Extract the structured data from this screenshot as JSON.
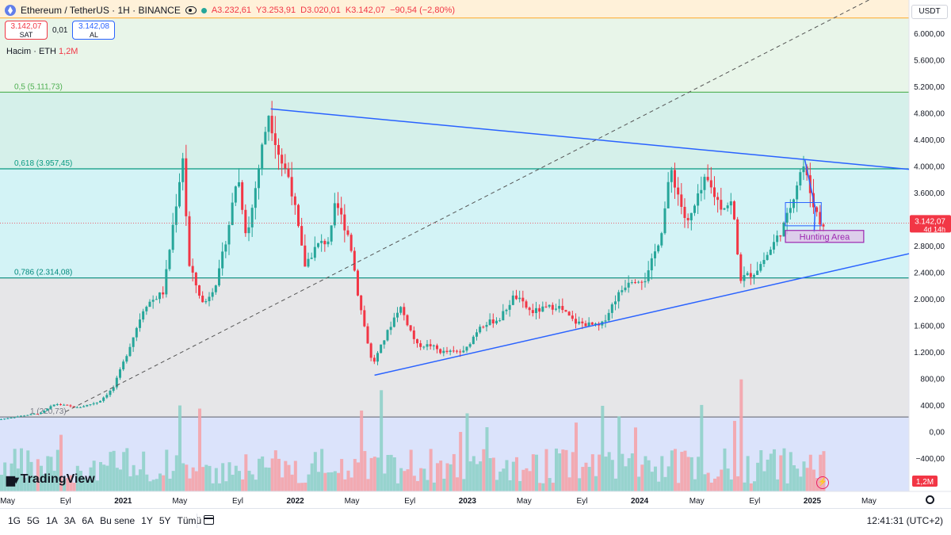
{
  "header": {
    "symbol": "Ethereum / TetherUS · 1H · BINANCE",
    "open": "A3.232,61",
    "high": "Y3.253,91",
    "low": "D3.020,01",
    "close": "K3.142,07",
    "change": "−90,54 (−2,80%)"
  },
  "trade": {
    "sell_price": "3.142,07",
    "sell_label": "SAT",
    "spread": "0,01",
    "buy_price": "3.142,08",
    "buy_label": "AL"
  },
  "volume_label": {
    "title": "Hacim · ETH",
    "value": "1,2M"
  },
  "currency": "USDT",
  "logo": "TradingView",
  "bottom": {
    "ranges": [
      "1G",
      "5G",
      "1A",
      "3A",
      "6A",
      "Bu sene",
      "1Y",
      "5Y",
      "Tümü"
    ],
    "clock": "12:41:31 (UTC+2)"
  },
  "icons": {
    "symbol": "ethereum-icon",
    "visibility": "eye-icon",
    "status": "market-status-dot",
    "calendar": "calendar-range-icon",
    "settings": "gear-icon",
    "flash": "flash-icon"
  },
  "colors": {
    "up": "#26a69a",
    "down": "#f23645",
    "trendline": "#2962ff",
    "hunting": "#9c27b0"
  },
  "chart_data": {
    "type": "candlestick",
    "y_axis": {
      "ticks": [
        6000,
        5600,
        5200,
        4800,
        4400,
        4000,
        3600,
        3200,
        2800,
        2400,
        2000,
        1600,
        1200,
        800,
        400,
        0,
        -400
      ],
      "tick_labels": [
        "6.000,00",
        "5.600,00",
        "5.200,00",
        "4.800,00",
        "4.400,00",
        "4.000,00",
        "3.600,00",
        "3.200,00",
        "2.800,00",
        "2.400,00",
        "2.000,00",
        "1.600,00",
        "1.200,00",
        "800,00",
        "400,00",
        "0,00",
        "−400,00"
      ],
      "range": [
        -900,
        6500
      ]
    },
    "x_axis": {
      "range": [
        "2020-04-15",
        "2025-07-25"
      ],
      "ticks": [
        {
          "date": "2020-05-01",
          "label": "May",
          "bold": false
        },
        {
          "date": "2020-09-01",
          "label": "Eyl",
          "bold": false
        },
        {
          "date": "2021-01-01",
          "label": "2021",
          "bold": true
        },
        {
          "date": "2021-05-01",
          "label": "May",
          "bold": false
        },
        {
          "date": "2021-09-01",
          "label": "Eyl",
          "bold": false
        },
        {
          "date": "2022-01-01",
          "label": "2022",
          "bold": true
        },
        {
          "date": "2022-05-01",
          "label": "May",
          "bold": false
        },
        {
          "date": "2022-09-01",
          "label": "Eyl",
          "bold": false
        },
        {
          "date": "2023-01-01",
          "label": "2023",
          "bold": true
        },
        {
          "date": "2023-05-01",
          "label": "May",
          "bold": false
        },
        {
          "date": "2023-09-01",
          "label": "Eyl",
          "bold": false
        },
        {
          "date": "2024-01-01",
          "label": "2024",
          "bold": true
        },
        {
          "date": "2024-05-01",
          "label": "May",
          "bold": false
        },
        {
          "date": "2024-09-01",
          "label": "Eyl",
          "bold": false
        },
        {
          "date": "2025-01-01",
          "label": "2025",
          "bold": true
        },
        {
          "date": "2025-05-01",
          "label": "May",
          "bold": false
        }
      ]
    },
    "fib_levels": [
      {
        "ratio": "0,5",
        "label": "0,5 (5.111,73)",
        "price": 5111.73,
        "color": "#4caf50"
      },
      {
        "ratio": "0,618",
        "label": "0,618 (3.957,45)",
        "price": 3957.45,
        "color": "#089981"
      },
      {
        "ratio": "0,786",
        "label": "0,786 (2.314,08)",
        "price": 2314.08,
        "color": "#00897b"
      },
      {
        "ratio": "1",
        "label": "1 (220,73)",
        "price": 220.73,
        "color": "#787b86"
      }
    ],
    "fib_zones": [
      {
        "from": 5111.73,
        "to": 6500,
        "color": "#e8f5e9"
      },
      {
        "from": 3957.45,
        "to": 5111.73,
        "color": "#d5f0ea"
      },
      {
        "from": 2314.08,
        "to": 3957.45,
        "color": "#d3f3f6"
      },
      {
        "from": 220.73,
        "to": 2314.08,
        "color": "#e6e6e8"
      },
      {
        "from": -900,
        "to": 220.73,
        "color": "#dbe3fb"
      }
    ],
    "top_band": {
      "from": 6230,
      "to": 6500,
      "color": "#fff1d9",
      "line": "#ffb74d"
    },
    "trendlines": [
      {
        "name": "resistance",
        "from": {
          "date": "2021-11-10",
          "price": 4860
        },
        "to": {
          "date": "2025-07-25",
          "price": 3950
        },
        "color": "#2962ff"
      },
      {
        "name": "support",
        "from": {
          "date": "2022-06-18",
          "price": 850
        },
        "to": {
          "date": "2025-07-25",
          "price": 2680
        },
        "color": "#2962ff"
      },
      {
        "name": "diagonal",
        "from": {
          "date": "2020-09-01",
          "price": 300
        },
        "to": {
          "date": "2025-05-01",
          "price": 6500
        },
        "color": "#555555",
        "dashed": true
      }
    ],
    "pattern": {
      "box": {
        "from": "2024-11-05",
        "to": "2025-01-20",
        "low": 3100,
        "high": 3450
      },
      "wedge": [
        {
          "date": "2024-12-16",
          "price": 4100
        },
        {
          "date": "2025-01-07",
          "price": 3380
        },
        {
          "date": "2025-01-05",
          "price": 3000
        }
      ]
    },
    "hunting_area": {
      "label": "Hunting Area",
      "from": "2024-11-05",
      "to": "2025-04-20",
      "low": 2850,
      "high": 3030,
      "color": "#9c27b0"
    },
    "last_price": {
      "value": 3142.07,
      "label": "3.142,07",
      "countdown": "4d 14h"
    },
    "volume_label": "1,2M",
    "series": [
      {
        "date": "2020-04-15",
        "close": 180
      },
      {
        "date": "2020-06-01",
        "close": 235
      },
      {
        "date": "2020-07-15",
        "close": 280
      },
      {
        "date": "2020-08-15",
        "close": 420
      },
      {
        "date": "2020-10-01",
        "close": 360
      },
      {
        "date": "2020-11-15",
        "close": 450
      },
      {
        "date": "2020-12-15",
        "close": 650
      },
      {
        "date": "2021-01-15",
        "close": 1200
      },
      {
        "date": "2021-02-20",
        "close": 1900
      },
      {
        "date": "2021-04-01",
        "close": 2100
      },
      {
        "date": "2021-05-12",
        "close": 4150
      },
      {
        "date": "2021-05-25",
        "close": 2500
      },
      {
        "date": "2021-06-25",
        "close": 1900
      },
      {
        "date": "2021-07-25",
        "close": 2300
      },
      {
        "date": "2021-08-20",
        "close": 3200
      },
      {
        "date": "2021-09-05",
        "close": 3900
      },
      {
        "date": "2021-09-25",
        "close": 2900
      },
      {
        "date": "2021-10-25",
        "close": 4200
      },
      {
        "date": "2021-11-10",
        "close": 4800
      },
      {
        "date": "2021-12-05",
        "close": 4100
      },
      {
        "date": "2021-12-25",
        "close": 3800
      },
      {
        "date": "2022-01-25",
        "close": 2500
      },
      {
        "date": "2022-02-20",
        "close": 2800
      },
      {
        "date": "2022-03-20",
        "close": 2900
      },
      {
        "date": "2022-04-01",
        "close": 3450
      },
      {
        "date": "2022-05-01",
        "close": 2900
      },
      {
        "date": "2022-05-20",
        "close": 2000
      },
      {
        "date": "2022-06-18",
        "close": 1000
      },
      {
        "date": "2022-07-20",
        "close": 1500
      },
      {
        "date": "2022-08-15",
        "close": 1900
      },
      {
        "date": "2022-09-20",
        "close": 1300
      },
      {
        "date": "2022-10-20",
        "close": 1300
      },
      {
        "date": "2022-11-10",
        "close": 1200
      },
      {
        "date": "2022-12-30",
        "close": 1200
      },
      {
        "date": "2023-02-01",
        "close": 1600
      },
      {
        "date": "2023-03-15",
        "close": 1700
      },
      {
        "date": "2023-04-15",
        "close": 2050
      },
      {
        "date": "2023-05-20",
        "close": 1800
      },
      {
        "date": "2023-07-15",
        "close": 1900
      },
      {
        "date": "2023-08-20",
        "close": 1650
      },
      {
        "date": "2023-10-15",
        "close": 1580
      },
      {
        "date": "2023-11-15",
        "close": 2000
      },
      {
        "date": "2023-12-15",
        "close": 2300
      },
      {
        "date": "2024-01-20",
        "close": 2300
      },
      {
        "date": "2024-02-20",
        "close": 3000
      },
      {
        "date": "2024-03-12",
        "close": 3950
      },
      {
        "date": "2024-04-15",
        "close": 3100
      },
      {
        "date": "2024-05-25",
        "close": 3800
      },
      {
        "date": "2024-06-25",
        "close": 3400
      },
      {
        "date": "2024-07-20",
        "close": 3450
      },
      {
        "date": "2024-08-05",
        "close": 2300
      },
      {
        "date": "2024-09-05",
        "close": 2400
      },
      {
        "date": "2024-10-01",
        "close": 2650
      },
      {
        "date": "2024-11-10",
        "close": 3150
      },
      {
        "date": "2024-12-16",
        "close": 4050
      },
      {
        "date": "2025-01-05",
        "close": 3500
      },
      {
        "date": "2025-01-22",
        "close": 3142
      }
    ]
  }
}
